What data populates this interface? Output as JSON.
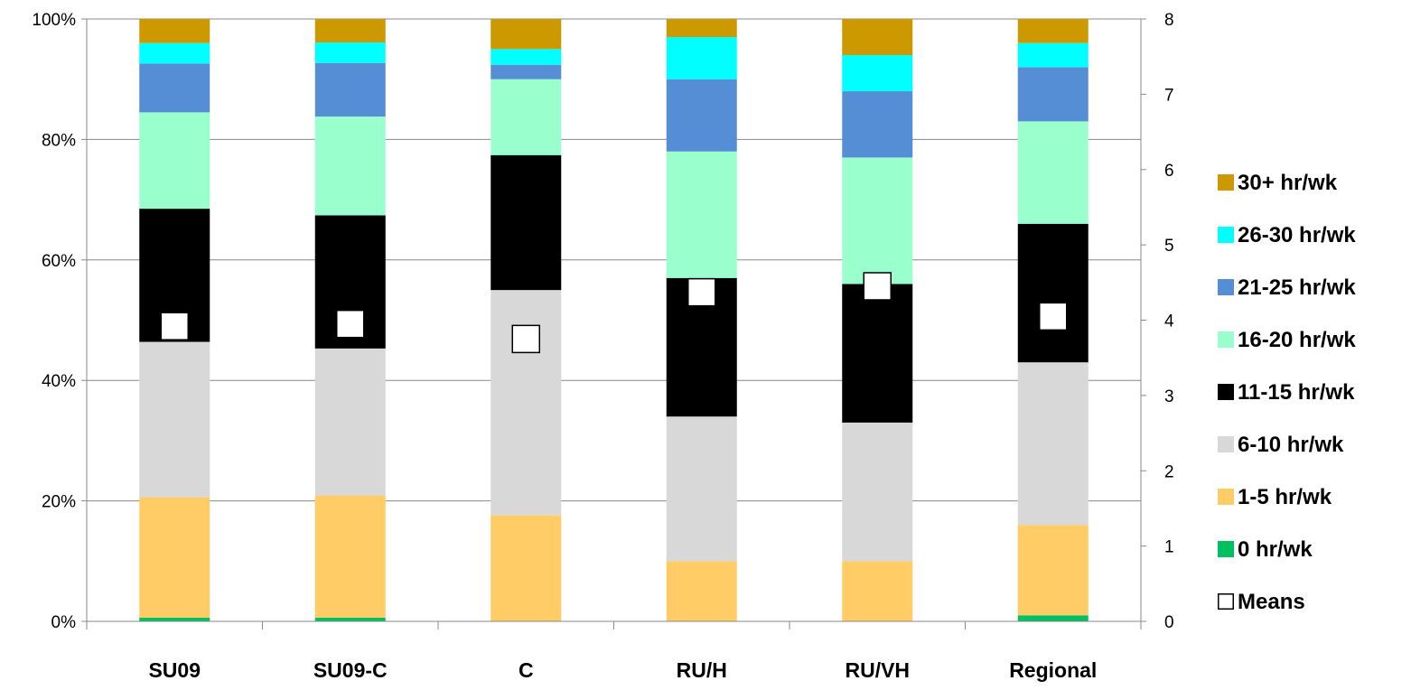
{
  "chart_data": {
    "type": "bar",
    "stacked": true,
    "categories": [
      "SU09",
      "SU09-C",
      "C",
      "RU/H",
      "RU/VH",
      "Regional"
    ],
    "y_left": {
      "range": [
        0,
        100
      ],
      "ticks": [
        "0%",
        "20%",
        "40%",
        "60%",
        "80%",
        "100%"
      ]
    },
    "y_right": {
      "range": [
        0,
        8
      ],
      "ticks": [
        "0",
        "1",
        "2",
        "3",
        "4",
        "5",
        "6",
        "7",
        "8"
      ]
    },
    "series": [
      {
        "name": "0 hr/wk",
        "color": "#00c060",
        "values": [
          0.6,
          0.6,
          0,
          0,
          0,
          1.0
        ]
      },
      {
        "name": "1-5 hr/wk",
        "color": "#ffcc66",
        "values": [
          20.0,
          20.3,
          17.6,
          10.0,
          10.0,
          15.0
        ]
      },
      {
        "name": "6-10 hr/wk",
        "color": "#d8d8d8",
        "values": [
          25.8,
          24.4,
          37.4,
          24.0,
          23.0,
          27.0
        ]
      },
      {
        "name": "11-15 hr/wk",
        "color": "#000000",
        "values": [
          22.1,
          22.1,
          22.4,
          23.0,
          23.0,
          23.0
        ]
      },
      {
        "name": "16-20 hr/wk",
        "color": "#99ffcc",
        "values": [
          16.0,
          16.4,
          12.6,
          21.0,
          21.0,
          17.0
        ]
      },
      {
        "name": "21-25 hr/wk",
        "color": "#558ed5",
        "values": [
          8.1,
          8.9,
          2.4,
          12.0,
          11.0,
          9.0
        ]
      },
      {
        "name": "26-30 hr/wk",
        "color": "#00ffff",
        "values": [
          3.4,
          3.4,
          2.6,
          7.0,
          6.0,
          4.0
        ]
      },
      {
        "name": "30+ hr/wk",
        "color": "#cc9900",
        "values": [
          4.0,
          3.9,
          5.0,
          3.0,
          6.0,
          4.0
        ]
      }
    ],
    "means": {
      "name": "Means",
      "axis": "right",
      "values": [
        3.92,
        3.95,
        3.75,
        4.37,
        4.45,
        4.05
      ]
    },
    "legend": {
      "placement": "right",
      "order": [
        "30+ hr/wk",
        "26-30 hr/wk",
        "21-25 hr/wk",
        "16-20 hr/wk",
        "11-15 hr/wk",
        "6-10 hr/wk",
        "1-5 hr/wk",
        "0 hr/wk",
        "Means"
      ]
    },
    "grid": "horizontal",
    "title": "",
    "xlabel": "",
    "ylabel": ""
  }
}
